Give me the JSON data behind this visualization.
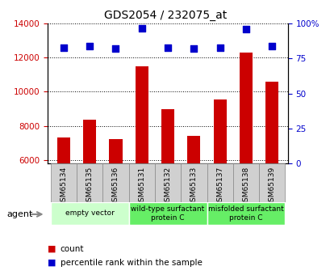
{
  "title": "GDS2054 / 232075_at",
  "categories": [
    "GSM65134",
    "GSM65135",
    "GSM65136",
    "GSM65131",
    "GSM65132",
    "GSM65133",
    "GSM65137",
    "GSM65138",
    "GSM65139"
  ],
  "counts": [
    7300,
    8350,
    7200,
    11500,
    9000,
    7400,
    9550,
    12300,
    10600
  ],
  "percentiles": [
    83,
    84,
    82,
    97,
    83,
    82,
    83,
    96,
    84
  ],
  "ylim_left": [
    5800,
    14000
  ],
  "ylim_right": [
    0,
    100
  ],
  "yticks_left": [
    6000,
    8000,
    10000,
    12000,
    14000
  ],
  "yticks_right": [
    0,
    25,
    50,
    75,
    100
  ],
  "bar_color": "#cc0000",
  "dot_color": "#0000cc",
  "grid_color": "#000000",
  "groups": [
    {
      "label": "empty vector",
      "start": 0,
      "end": 3,
      "color": "#ccffcc"
    },
    {
      "label": "wild-type surfactant\nprotein C",
      "start": 3,
      "end": 6,
      "color": "#66ee66"
    },
    {
      "label": "misfolded surfactant\nprotein C",
      "start": 6,
      "end": 9,
      "color": "#66ee66"
    }
  ],
  "agent_label": "agent",
  "legend_count_label": "count",
  "legend_percentile_label": "percentile rank within the sample",
  "bar_width": 0.5,
  "dot_size": 35,
  "tick_label_color_left": "#cc0000",
  "tick_label_color_right": "#0000cc",
  "background_color": "#ffffff",
  "plot_bg_color": "#ffffff",
  "sample_box_color": "#d0d0d0",
  "sample_box_border": "#888888"
}
